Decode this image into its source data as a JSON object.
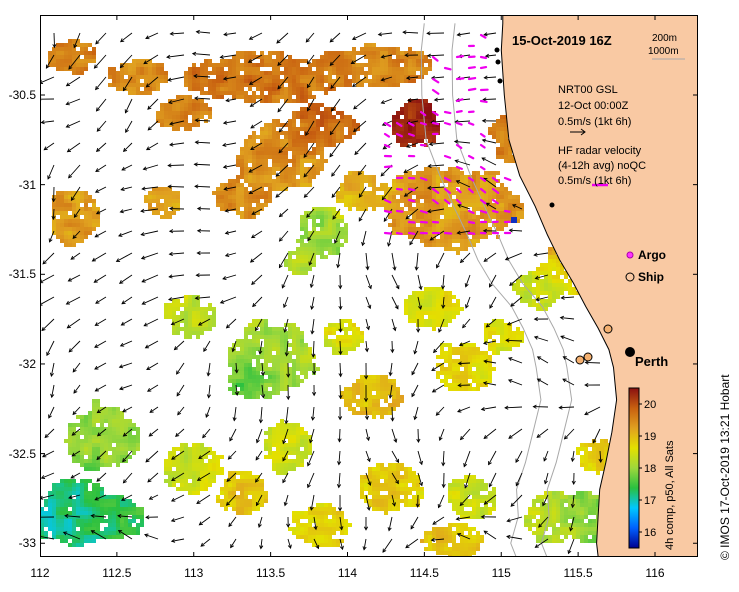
{
  "map": {
    "title": "15-Oct-2019 16Z",
    "isobaths": [
      "200m",
      "1000m"
    ],
    "gsl": {
      "line1": "NRT00 GSL",
      "line2": "12-Oct 00:00Z",
      "line3": "0.5m/s (1kt 6h)"
    },
    "hf": {
      "line1": "HF radar velocity",
      "line2": "(4-12h avg) noQC",
      "line3": "0.5m/s (1kt 6h)"
    },
    "legend": {
      "argo": "Argo",
      "ship": "Ship"
    },
    "city": "Perth",
    "colorbar": {
      "ticks": [
        "20",
        "19",
        "18",
        "17",
        "16"
      ],
      "label": "4h comp, p50, All Sats",
      "min": 15.5,
      "max": 20.5
    },
    "credit": "© IMOS 17-Oct-2019 13:21 Hobart",
    "x_ticks": [
      "112",
      "112.5",
      "113",
      "113.5",
      "114",
      "114.5",
      "115",
      "115.5",
      "116"
    ],
    "y_ticks": [
      "-30.5",
      "-31",
      "-31.5",
      "-32",
      "-32.5",
      "-33"
    ],
    "lon_range": [
      112,
      116.3
    ],
    "lat_range": [
      -33.1,
      -30.1
    ]
  },
  "colors": {
    "land": "#f9c9a3",
    "hf_arrow": "#ee00ee",
    "argo": "#ff33ff",
    "ship_fill": "#f4b070",
    "colorbar_stops": [
      "#000090",
      "#0060ff",
      "#00c8ff",
      "#2ac040",
      "#9ed83c",
      "#e4e000",
      "#e0a020",
      "#c86010",
      "#8a1010"
    ]
  }
}
